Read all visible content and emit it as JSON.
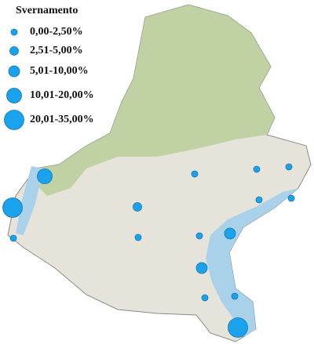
{
  "legend": {
    "title": "Svernamento",
    "classes": [
      "0,00-2,50%",
      "2,51-5,00%",
      "5,01-10,00%",
      "10,01-20,00%",
      "20,01-35,00%"
    ]
  }
}
